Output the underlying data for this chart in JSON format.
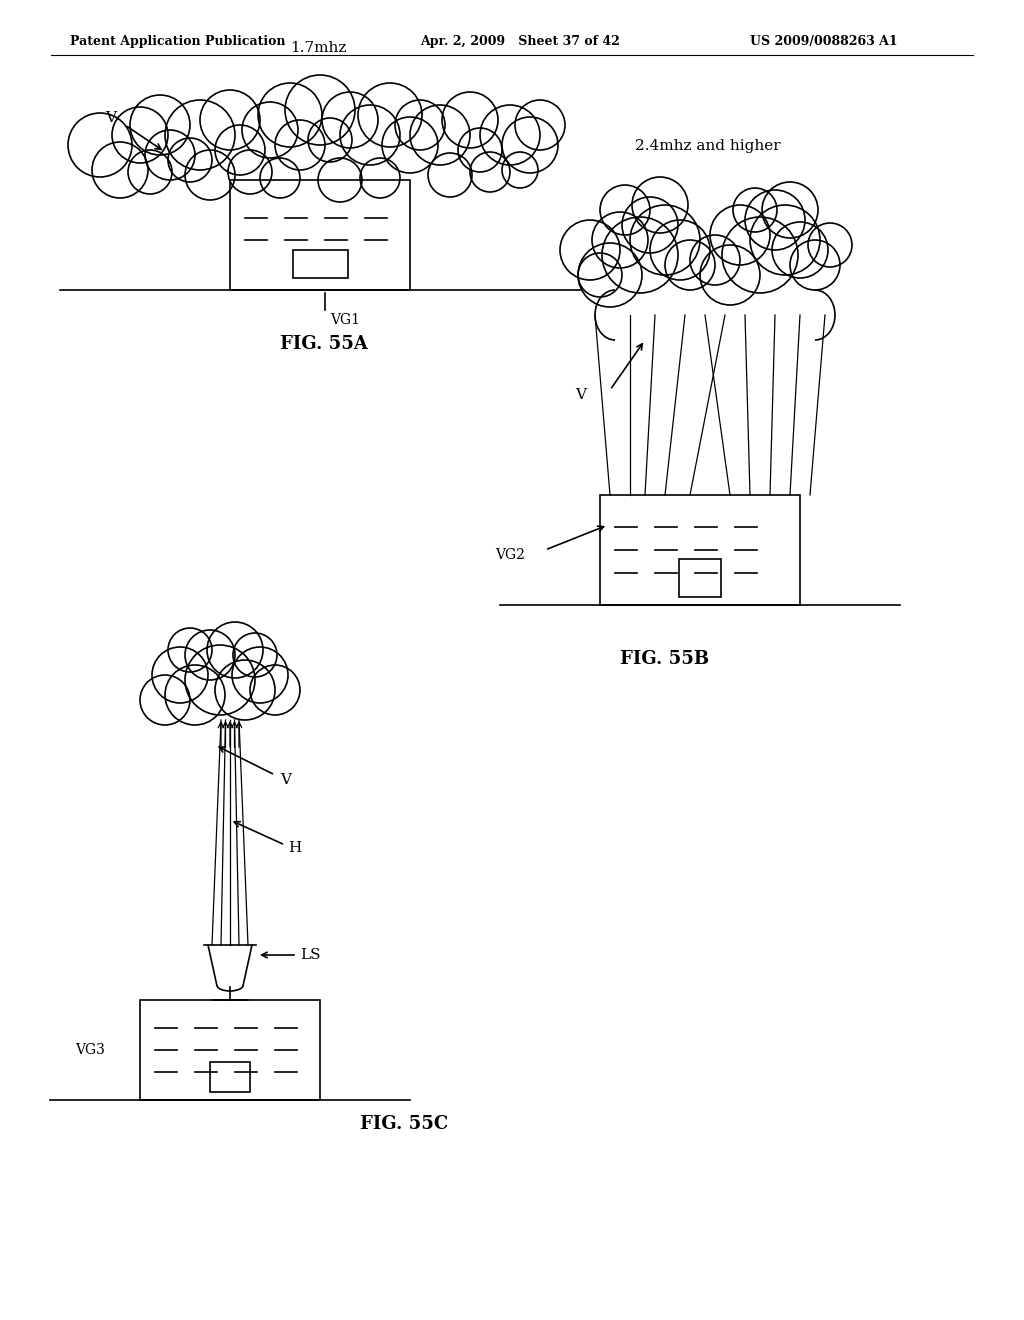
{
  "bg_color": "#ffffff",
  "header_left": "Patent Application Publication",
  "header_mid": "Apr. 2, 2009   Sheet 37 of 42",
  "header_right": "US 2009/0088263 A1",
  "fig55a_label": "FIG. 55A",
  "fig55b_label": "FIG. 55B",
  "fig55c_label": "FIG. 55C",
  "label_17mhz": "1.7mhz",
  "label_24mhz": "2.4mhz and higher",
  "label_VG1": "VG1",
  "label_VG2": "VG2",
  "label_VG3": "VG3",
  "label_V": "V",
  "label_H": "H",
  "label_LS": "LS"
}
